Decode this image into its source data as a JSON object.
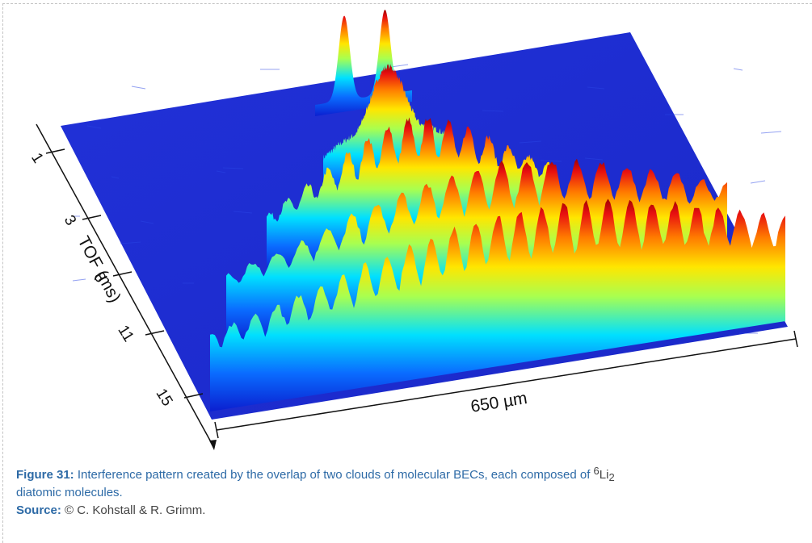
{
  "figure": {
    "label": "Figure 31:",
    "caption_before": "Interference pattern created by the overlap of two clouds of molecular BECs, each composed of",
    "isotope_superscript": "6",
    "element": "Li",
    "subscript": "2",
    "caption_after": "diatomic molecules.",
    "source_label": "Source:",
    "source_text": "© C. Kohstall & R. Grimm."
  },
  "colors": {
    "background_plane": "#1f2fd6",
    "caption_label": "#2d6aa6",
    "colormap": [
      "#0b1fd0",
      "#0a6cff",
      "#00e0ff",
      "#a8ff50",
      "#ffe600",
      "#ff7a00",
      "#e81010",
      "#a00000"
    ]
  },
  "chart_data": {
    "type": "surface",
    "title": "",
    "xlabel": "650 µm",
    "ylabel": "TOF (ms)",
    "y_ticks": [
      "1",
      "3",
      "8",
      "11",
      "15"
    ],
    "grid": false,
    "series": [
      {
        "name": "",
        "tof_ms": 1,
        "profile": "two separated narrow peaks",
        "fringes": 0,
        "relative_peak_height": 1.0
      },
      {
        "name": "",
        "tof_ms": 3,
        "profile": "two overlapping clouds with double-hump top",
        "fringes": 2,
        "relative_peak_height": 1.0
      },
      {
        "name": "",
        "tof_ms": 8,
        "profile": "broad cloud with fine fringes on top",
        "fringes": 14,
        "relative_peak_height": 1.0
      },
      {
        "name": "",
        "tof_ms": 11,
        "profile": "wide cloud with pronounced interference fringes",
        "fringes": 20,
        "relative_peak_height": 1.0
      },
      {
        "name": "",
        "tof_ms": 15,
        "profile": "widest cloud with regular interference fringes",
        "fringes": 26,
        "relative_peak_height": 1.0
      }
    ]
  }
}
